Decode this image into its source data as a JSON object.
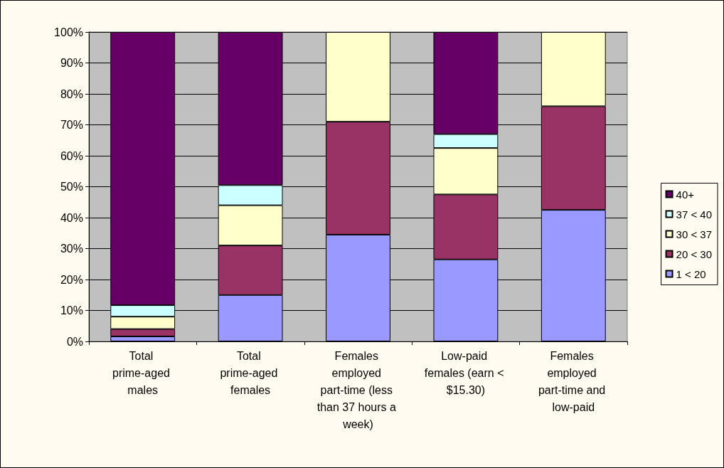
{
  "chart_data": {
    "type": "bar",
    "stacked": true,
    "categories": [
      "Total prime-aged males",
      "Total prime-aged females",
      "Females employed part-time (less than 37 hours a week)",
      "Low-paid females (earn < $15.30)",
      "Females employed part-time and low-paid"
    ],
    "series": [
      {
        "name": "1 < 20",
        "color": "#9999ff",
        "values": [
          1.6,
          15,
          34.5,
          26.5,
          42.5
        ]
      },
      {
        "name": "20 < 30",
        "color": "#993366",
        "values": [
          2.4,
          16,
          36.5,
          21,
          33.5
        ]
      },
      {
        "name": "30 < 37",
        "color": "#ffffcc",
        "values": [
          4,
          13,
          29,
          15,
          24
        ]
      },
      {
        "name": "37 < 40",
        "color": "#ccffff",
        "values": [
          3.7,
          6.5,
          null,
          4.5,
          null
        ]
      },
      {
        "name": "40+",
        "color": "#660066",
        "values": [
          88.3,
          49.5,
          null,
          33,
          null
        ]
      }
    ],
    "ylim": [
      0,
      100
    ],
    "yticks": [
      {
        "value": 0,
        "label": "0%"
      },
      {
        "value": 10,
        "label": "10%"
      },
      {
        "value": 20,
        "label": "20%"
      },
      {
        "value": 30,
        "label": "30%"
      },
      {
        "value": 40,
        "label": "40%"
      },
      {
        "value": 50,
        "label": "50%"
      },
      {
        "value": 60,
        "label": "60%"
      },
      {
        "value": 70,
        "label": "70%"
      },
      {
        "value": 80,
        "label": "80%"
      },
      {
        "value": 90,
        "label": "90%"
      },
      {
        "value": 100,
        "label": "100%"
      }
    ],
    "grid": "y",
    "legend": "right"
  }
}
